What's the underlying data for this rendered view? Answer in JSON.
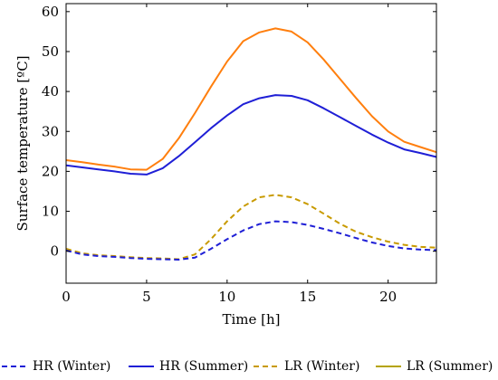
{
  "chart_data": {
    "type": "line",
    "title": "",
    "xlabel": "Time [h]",
    "ylabel": "Surface temperature [ºC]",
    "xlim": [
      0,
      23
    ],
    "ylim": [
      -8,
      62
    ],
    "xticks": [
      0,
      5,
      10,
      15,
      20
    ],
    "yticks": [
      0,
      10,
      20,
      30,
      40,
      50,
      60
    ],
    "grid": false,
    "legend_position": "bottom",
    "x": [
      0,
      1,
      2,
      3,
      4,
      5,
      6,
      7,
      8,
      9,
      10,
      11,
      12,
      13,
      14,
      15,
      16,
      17,
      18,
      19,
      20,
      21,
      22,
      23
    ],
    "series": [
      {
        "name": "HR (Winter)",
        "color": "#1f1fd6",
        "dash": true,
        "values": [
          0.2,
          -0.8,
          -1.2,
          -1.4,
          -1.7,
          -1.9,
          -2.0,
          -2.1,
          -1.6,
          0.6,
          3.0,
          5.2,
          6.8,
          7.5,
          7.3,
          6.6,
          5.6,
          4.5,
          3.3,
          2.2,
          1.3,
          0.7,
          0.4,
          0.3
        ]
      },
      {
        "name": "HR (Summer)",
        "color": "#1f1fd6",
        "dash": false,
        "values": [
          21.5,
          21.0,
          20.5,
          20.0,
          19.4,
          19.2,
          20.8,
          23.8,
          27.3,
          30.8,
          34.0,
          36.8,
          38.3,
          39.1,
          38.9,
          37.8,
          35.8,
          33.6,
          31.4,
          29.2,
          27.2,
          25.5,
          24.6,
          23.6
        ]
      },
      {
        "name": "LR (Winter)",
        "color": "#c89a00",
        "dash": true,
        "values": [
          0.6,
          -0.5,
          -1.0,
          -1.2,
          -1.5,
          -1.7,
          -1.8,
          -2.0,
          -0.8,
          3.0,
          7.5,
          11.2,
          13.5,
          14.1,
          13.5,
          11.8,
          9.4,
          6.9,
          4.9,
          3.5,
          2.4,
          1.6,
          1.1,
          0.9
        ]
      },
      {
        "name": "LR (Summer)",
        "color": "#ff7f0e",
        "legend_color": "#b5a300",
        "dash": false,
        "values": [
          22.8,
          22.3,
          21.7,
          21.2,
          20.5,
          20.4,
          23.1,
          28.3,
          34.6,
          41.2,
          47.5,
          52.6,
          54.8,
          55.8,
          55.0,
          52.3,
          48.0,
          43.2,
          38.4,
          33.8,
          30.0,
          27.4,
          26.1,
          24.8
        ]
      }
    ]
  }
}
